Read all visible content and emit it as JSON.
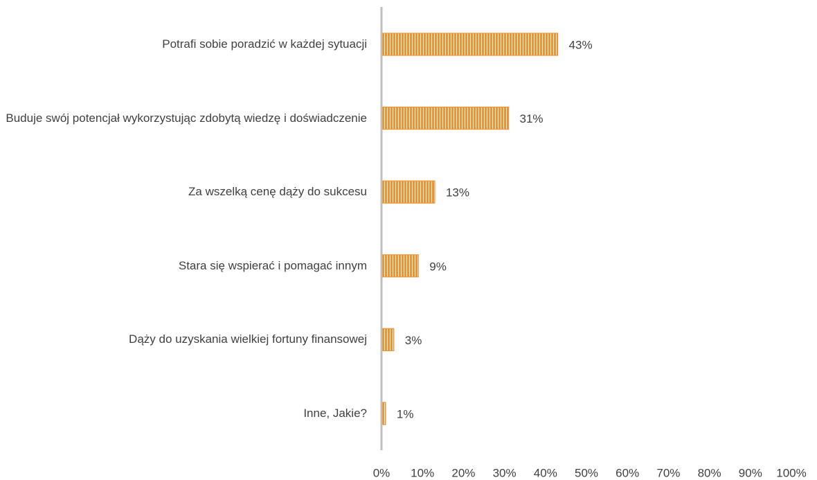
{
  "chart_data": {
    "type": "bar",
    "orientation": "horizontal",
    "categories": [
      "Potrafi sobie poradzić w każdej sytuacji",
      "Buduje swój potencjał wykorzystując zdobytą wiedzę i doświadczenie",
      "Za wszelką cenę dąży do sukcesu",
      "Stara się wspierać i pomagać innym",
      "Dąży do uzyskania wielkiej fortuny finansowej",
      "Inne, Jakie?"
    ],
    "values": [
      43,
      31,
      13,
      9,
      3,
      1
    ],
    "value_labels": [
      "43%",
      "31%",
      "13%",
      "9%",
      "3%",
      "1%"
    ],
    "color": "#f0922e",
    "xlim": [
      0,
      100
    ],
    "xticks": [
      {
        "value": 0,
        "label": "0%"
      },
      {
        "value": 10,
        "label": "10%"
      },
      {
        "value": 20,
        "label": "20%"
      },
      {
        "value": 30,
        "label": "30%"
      },
      {
        "value": 40,
        "label": "40%"
      },
      {
        "value": 50,
        "label": "50%"
      },
      {
        "value": 60,
        "label": "60%"
      },
      {
        "value": 70,
        "label": "70%"
      },
      {
        "value": 80,
        "label": "80%"
      },
      {
        "value": 90,
        "label": "90%"
      },
      {
        "value": 100,
        "label": "100%"
      }
    ],
    "grid": false
  }
}
